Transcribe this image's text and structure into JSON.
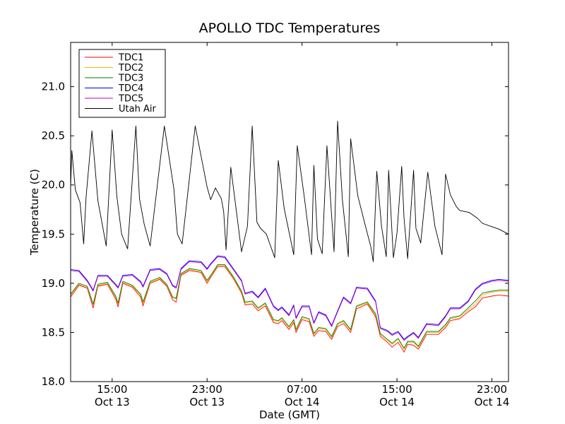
{
  "chart_data": {
    "type": "line",
    "title": "APOLLO TDC Temperatures",
    "xlabel": "Date (GMT)",
    "ylabel": "Temperature (C)",
    "x_units": "hours since Oct 13 00:00 GMT",
    "xlim": [
      10.5,
      47.4
    ],
    "ylim": [
      18.0,
      21.45
    ],
    "yticks": [
      18.0,
      18.5,
      19.0,
      19.5,
      20.0,
      20.5,
      21.0
    ],
    "ytick_labels": [
      "18.0",
      "18.5",
      "19.0",
      "19.5",
      "20.0",
      "20.5",
      "21.0"
    ],
    "xticks": [
      {
        "x": 14,
        "time": "15:00",
        "date": "Oct 13"
      },
      {
        "x": 22,
        "time": "23:00",
        "date": "Oct 13"
      },
      {
        "x": 30,
        "time": "07:00",
        "date": "Oct 14"
      },
      {
        "x": 38,
        "time": "15:00",
        "date": "Oct 14"
      },
      {
        "x": 46,
        "time": "23:00",
        "date": "Oct 14"
      }
    ],
    "legend_position": "upper-left",
    "series": [
      {
        "name": "TDC1",
        "color": "#ff0000",
        "x": [
          10.5,
          11.2,
          11.9,
          12.4,
          12.8,
          13.6,
          14.3,
          14.5,
          14.9,
          15.7,
          16.4,
          16.6,
          17.2,
          18.0,
          18.6,
          19.1,
          19.4,
          19.8,
          20.5,
          21.5,
          22.0,
          22.3,
          22.9,
          23.5,
          24.2,
          24.9,
          25.2,
          25.8,
          26.3,
          26.9,
          27.6,
          28.0,
          28.3,
          28.9,
          29.3,
          29.5,
          30.0,
          30.6,
          31.0,
          31.4,
          32.0,
          32.5,
          33.0,
          33.5,
          34.1,
          34.6,
          35.5,
          36.2,
          36.6,
          37.2,
          37.6,
          38.1,
          38.6,
          38.9,
          39.4,
          39.8,
          40.5,
          41.5,
          42.1,
          42.5,
          43.3,
          44.0,
          44.6,
          45.2,
          46.0,
          46.6,
          47.4
        ],
        "values": [
          18.86,
          18.98,
          18.95,
          18.75,
          18.97,
          18.99,
          18.84,
          18.76,
          19.0,
          18.96,
          18.86,
          18.77,
          19.0,
          19.04,
          18.97,
          18.83,
          18.81,
          19.08,
          19.13,
          19.11,
          19.0,
          19.06,
          19.17,
          19.17,
          19.05,
          18.9,
          18.78,
          18.79,
          18.72,
          18.77,
          18.6,
          18.59,
          18.62,
          18.53,
          18.6,
          18.5,
          18.63,
          18.61,
          18.46,
          18.52,
          18.51,
          18.43,
          18.56,
          18.59,
          18.5,
          18.74,
          18.79,
          18.66,
          18.46,
          18.4,
          18.35,
          18.4,
          18.3,
          18.38,
          18.37,
          18.33,
          18.48,
          18.48,
          18.55,
          18.62,
          18.64,
          18.71,
          18.76,
          18.85,
          18.87,
          18.88,
          18.87
        ]
      },
      {
        "name": "TDC2",
        "color": "#ffb000",
        "x": [
          10.5,
          11.2,
          11.9,
          12.4,
          12.8,
          13.6,
          14.3,
          14.5,
          14.9,
          15.7,
          16.4,
          16.6,
          17.2,
          18.0,
          18.6,
          19.1,
          19.4,
          19.8,
          20.5,
          21.5,
          22.0,
          22.3,
          22.9,
          23.5,
          24.2,
          24.9,
          25.2,
          25.8,
          26.3,
          26.9,
          27.6,
          28.0,
          28.3,
          28.9,
          29.3,
          29.5,
          30.0,
          30.6,
          31.0,
          31.4,
          32.0,
          32.5,
          33.0,
          33.5,
          34.1,
          34.6,
          35.5,
          36.2,
          36.6,
          37.2,
          37.6,
          38.1,
          38.6,
          38.9,
          39.4,
          39.8,
          40.5,
          41.5,
          42.1,
          42.5,
          43.3,
          44.0,
          44.6,
          45.2,
          46.0,
          46.6,
          47.4
        ],
        "values": [
          18.88,
          18.99,
          18.96,
          18.78,
          18.98,
          19.0,
          18.86,
          18.79,
          19.01,
          18.97,
          18.88,
          18.8,
          19.01,
          19.05,
          18.98,
          18.85,
          18.84,
          19.09,
          19.14,
          19.12,
          19.02,
          19.07,
          19.18,
          19.18,
          19.06,
          18.91,
          18.8,
          18.81,
          18.74,
          18.79,
          18.62,
          18.61,
          18.64,
          18.55,
          18.62,
          18.52,
          18.65,
          18.63,
          18.48,
          18.54,
          18.53,
          18.45,
          18.58,
          18.61,
          18.52,
          18.76,
          18.8,
          18.68,
          18.48,
          18.42,
          18.38,
          18.43,
          18.33,
          18.4,
          18.4,
          18.35,
          18.5,
          18.5,
          18.57,
          18.64,
          18.66,
          18.73,
          18.79,
          18.88,
          18.91,
          18.92,
          18.92
        ]
      },
      {
        "name": "TDC3",
        "color": "#008000",
        "x": [
          10.5,
          11.2,
          11.9,
          12.4,
          12.8,
          13.6,
          14.3,
          14.5,
          14.9,
          15.7,
          16.4,
          16.6,
          17.2,
          18.0,
          18.6,
          19.1,
          19.4,
          19.8,
          20.5,
          21.5,
          22.0,
          22.3,
          22.9,
          23.5,
          24.2,
          24.9,
          25.2,
          25.8,
          26.3,
          26.9,
          27.6,
          28.0,
          28.3,
          28.9,
          29.3,
          29.5,
          30.0,
          30.6,
          31.0,
          31.4,
          32.0,
          32.5,
          33.0,
          33.5,
          34.1,
          34.6,
          35.5,
          36.2,
          36.6,
          37.2,
          37.6,
          38.1,
          38.6,
          38.9,
          39.4,
          39.8,
          40.5,
          41.5,
          42.1,
          42.5,
          43.3,
          44.0,
          44.6,
          45.2,
          46.0,
          46.6,
          47.4
        ],
        "values": [
          18.89,
          19.0,
          18.97,
          18.79,
          18.99,
          19.01,
          18.87,
          18.8,
          19.02,
          18.98,
          18.89,
          18.81,
          19.02,
          19.06,
          18.99,
          18.86,
          18.85,
          19.1,
          19.15,
          19.13,
          19.03,
          19.08,
          19.19,
          19.19,
          19.07,
          18.92,
          18.81,
          18.82,
          18.75,
          18.8,
          18.63,
          18.62,
          18.65,
          18.56,
          18.63,
          18.53,
          18.66,
          18.64,
          18.49,
          18.55,
          18.54,
          18.46,
          18.59,
          18.62,
          18.53,
          18.77,
          18.81,
          18.69,
          18.49,
          18.43,
          18.39,
          18.44,
          18.34,
          18.41,
          18.41,
          18.36,
          18.51,
          18.51,
          18.58,
          18.65,
          18.67,
          18.75,
          18.82,
          18.9,
          18.92,
          18.93,
          18.93
        ]
      },
      {
        "name": "TDC4",
        "color": "#0000ff",
        "x": [
          10.5,
          11.2,
          11.9,
          12.4,
          12.8,
          13.6,
          14.3,
          14.5,
          14.9,
          15.7,
          16.4,
          16.6,
          17.2,
          18.0,
          18.6,
          19.1,
          19.4,
          19.8,
          20.5,
          21.5,
          22.0,
          22.3,
          22.9,
          23.5,
          24.2,
          24.9,
          25.2,
          25.8,
          26.3,
          26.9,
          27.6,
          28.0,
          28.3,
          28.9,
          29.3,
          29.5,
          30.0,
          30.6,
          31.0,
          31.4,
          32.0,
          32.5,
          33.0,
          33.5,
          34.1,
          34.6,
          35.5,
          36.2,
          36.6,
          37.2,
          37.6,
          38.1,
          38.6,
          38.9,
          39.4,
          39.8,
          40.5,
          41.5,
          42.1,
          42.5,
          43.3,
          44.0,
          44.6,
          45.2,
          46.0,
          46.6,
          47.4
        ],
        "values": [
          19.14,
          19.13,
          19.03,
          18.93,
          19.08,
          19.08,
          18.99,
          18.96,
          19.08,
          19.09,
          19.02,
          18.97,
          19.14,
          19.15,
          19.1,
          18.98,
          18.96,
          19.15,
          19.23,
          19.22,
          19.15,
          19.2,
          19.28,
          19.27,
          19.15,
          19.03,
          18.9,
          18.92,
          18.86,
          18.95,
          18.77,
          18.73,
          18.76,
          18.68,
          18.78,
          18.65,
          18.77,
          18.77,
          18.6,
          18.71,
          18.68,
          18.57,
          18.72,
          18.86,
          18.8,
          18.96,
          18.95,
          18.82,
          18.55,
          18.52,
          18.48,
          18.51,
          18.43,
          18.46,
          18.5,
          18.45,
          18.59,
          18.58,
          18.67,
          18.75,
          18.75,
          18.82,
          18.94,
          19.0,
          19.03,
          19.04,
          19.03
        ]
      },
      {
        "name": "TDC5",
        "color": "#bf00bf",
        "x": [
          10.5,
          11.2,
          11.9,
          12.4,
          12.8,
          13.6,
          14.3,
          14.5,
          14.9,
          15.7,
          16.4,
          16.6,
          17.2,
          18.0,
          18.6,
          19.1,
          19.4,
          19.8,
          20.5,
          21.5,
          22.0,
          22.3,
          22.9,
          23.5,
          24.2,
          24.9,
          25.2,
          25.8,
          26.3,
          26.9,
          27.6,
          28.0,
          28.3,
          28.9,
          29.3,
          29.5,
          30.0,
          30.6,
          31.0,
          31.4,
          32.0,
          32.5,
          33.0,
          33.5,
          34.1,
          34.6,
          35.5,
          36.2,
          36.6,
          37.2,
          37.6,
          38.1,
          38.6,
          38.9,
          39.4,
          39.8,
          40.5,
          41.5,
          42.1,
          42.5,
          43.3,
          44.0,
          44.6,
          45.2,
          46.0,
          46.6,
          47.4
        ],
        "values": [
          19.13,
          19.12,
          19.02,
          18.92,
          19.07,
          19.07,
          18.98,
          18.95,
          19.07,
          19.08,
          19.01,
          18.96,
          19.13,
          19.14,
          19.09,
          18.97,
          18.95,
          19.14,
          19.22,
          19.21,
          19.14,
          19.19,
          19.27,
          19.26,
          19.14,
          19.02,
          18.89,
          18.91,
          18.85,
          18.94,
          18.76,
          18.72,
          18.75,
          18.67,
          18.77,
          18.64,
          18.76,
          18.76,
          18.59,
          18.7,
          18.67,
          18.56,
          18.71,
          18.85,
          18.79,
          18.95,
          18.94,
          18.81,
          18.54,
          18.51,
          18.47,
          18.5,
          18.42,
          18.45,
          18.49,
          18.44,
          18.58,
          18.57,
          18.66,
          18.74,
          18.74,
          18.81,
          18.93,
          18.99,
          19.02,
          19.03,
          19.02
        ]
      },
      {
        "name": "Utah Air",
        "color": "#000000",
        "x": [
          10.5,
          10.6,
          10.9,
          11.3,
          11.6,
          11.8,
          12.3,
          12.8,
          13.5,
          14.0,
          14.4,
          14.8,
          15.3,
          16.0,
          16.3,
          16.7,
          17.2,
          18.4,
          19.2,
          19.5,
          19.9,
          21.0,
          22.0,
          22.3,
          22.7,
          23.2,
          23.4,
          23.6,
          24.0,
          24.9,
          25.4,
          25.8,
          26.2,
          26.5,
          27.0,
          27.7,
          28.0,
          28.5,
          29.3,
          29.6,
          30.2,
          30.8,
          31.0,
          31.3,
          31.7,
          32.1,
          32.7,
          33.0,
          33.4,
          33.9,
          34.1,
          34.7,
          35.2,
          35.8,
          36.0,
          36.3,
          36.7,
          37.1,
          37.3,
          37.7,
          38.0,
          38.4,
          38.6,
          38.9,
          39.4,
          39.6,
          40.0,
          40.6,
          41.2,
          41.8,
          42.1,
          42.5,
          43.0,
          43.3,
          44.1,
          44.8,
          45.2,
          45.9,
          46.6,
          47.4
        ],
        "values": [
          19.98,
          20.35,
          19.95,
          19.82,
          19.4,
          19.87,
          20.55,
          19.84,
          19.38,
          20.56,
          19.88,
          19.5,
          19.35,
          20.6,
          19.86,
          19.6,
          19.38,
          20.6,
          19.96,
          19.5,
          19.4,
          20.6,
          19.98,
          19.85,
          19.97,
          19.86,
          19.73,
          19.34,
          20.18,
          19.32,
          19.58,
          20.6,
          19.62,
          19.56,
          19.5,
          19.26,
          20.25,
          19.76,
          19.29,
          20.4,
          19.87,
          19.29,
          20.2,
          19.45,
          19.3,
          20.4,
          19.32,
          20.65,
          19.85,
          19.27,
          20.47,
          19.89,
          19.65,
          19.37,
          19.22,
          20.14,
          19.58,
          19.27,
          20.15,
          19.26,
          19.51,
          20.19,
          19.66,
          19.25,
          20.15,
          19.56,
          19.41,
          20.13,
          19.58,
          19.29,
          20.11,
          19.9,
          19.78,
          19.74,
          19.72,
          19.66,
          19.61,
          19.58,
          19.55,
          19.5
        ]
      }
    ]
  }
}
